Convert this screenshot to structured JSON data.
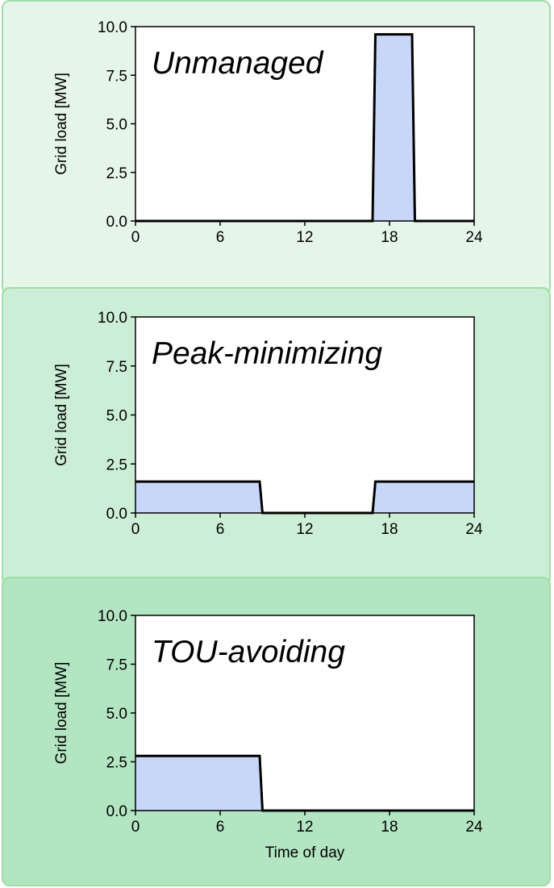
{
  "chart_data": [
    {
      "type": "area",
      "title": "Unmanaged",
      "ylabel": "Grid load [MW]",
      "xlabel": "",
      "xlim": [
        0,
        24
      ],
      "ylim": [
        0,
        10
      ],
      "xticks": [
        "0",
        "6",
        "12",
        "18",
        "24"
      ],
      "yticks": [
        "0.0",
        "2.5",
        "5.0",
        "7.5",
        "10.0"
      ],
      "x": [
        0,
        16.8,
        17.0,
        19.6,
        19.8,
        24
      ],
      "values": [
        0,
        0,
        9.6,
        9.6,
        0,
        0
      ],
      "fill_color": "#c8d6f8",
      "line_color": "#000000"
    },
    {
      "type": "area",
      "title": "Peak-minimizing",
      "ylabel": "Grid load [MW]",
      "xlabel": "",
      "xlim": [
        0,
        24
      ],
      "ylim": [
        0,
        10
      ],
      "xticks": [
        "0",
        "6",
        "12",
        "18",
        "24"
      ],
      "yticks": [
        "0.0",
        "2.5",
        "5.0",
        "7.5",
        "10.0"
      ],
      "x": [
        0,
        8.8,
        9.0,
        16.8,
        17.0,
        24
      ],
      "values": [
        1.6,
        1.6,
        0,
        0,
        1.6,
        1.6
      ],
      "fill_color": "#c8d6f8",
      "line_color": "#000000"
    },
    {
      "type": "area",
      "title": "TOU-avoiding",
      "ylabel": "Grid load [MW]",
      "xlabel": "Time of day",
      "xlim": [
        0,
        24
      ],
      "ylim": [
        0,
        10
      ],
      "xticks": [
        "0",
        "6",
        "12",
        "18",
        "24"
      ],
      "yticks": [
        "0.0",
        "2.5",
        "5.0",
        "7.5",
        "10.0"
      ],
      "x": [
        0,
        8.8,
        9.0,
        24
      ],
      "values": [
        2.8,
        2.8,
        0,
        0
      ],
      "fill_color": "#c8d6f8",
      "line_color": "#000000"
    }
  ]
}
